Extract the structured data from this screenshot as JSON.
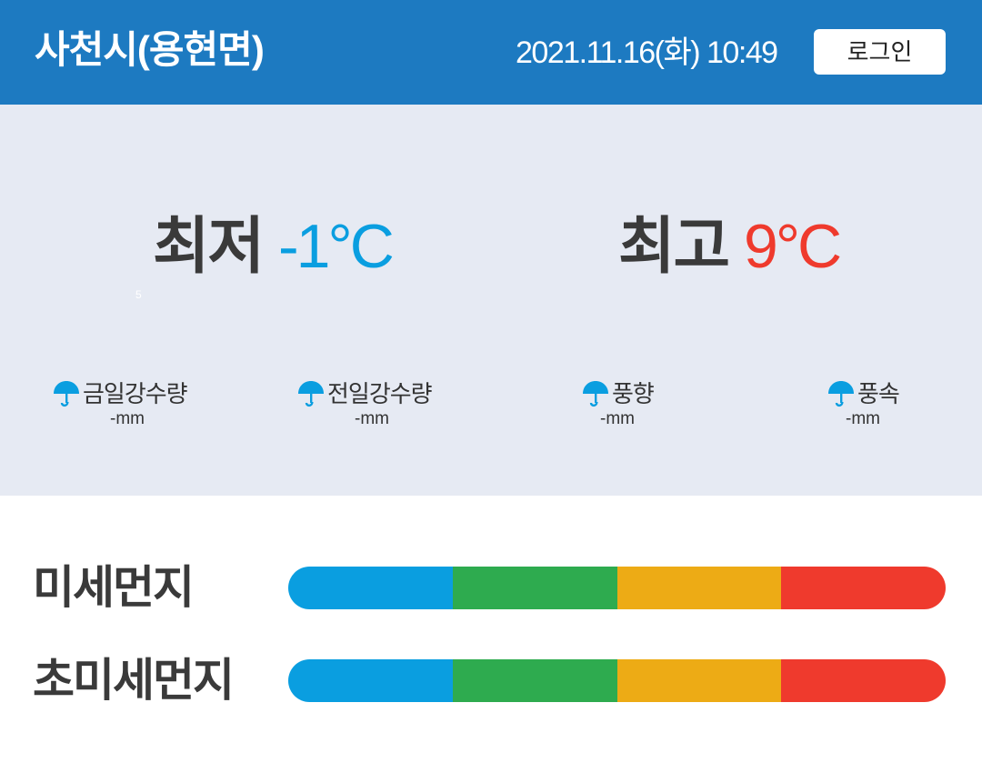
{
  "header": {
    "location": "사천시(용현면)",
    "datetime": "2021.11.16(화) 10:49",
    "login_label": "로그인"
  },
  "weather": {
    "min": {
      "label": "최저",
      "value": "-1°C"
    },
    "max": {
      "label": "최고",
      "value": "9°C"
    },
    "tiny_mark": "5",
    "stats": [
      {
        "label": "금일강수량",
        "value": "-mm",
        "icon": "umbrella-icon"
      },
      {
        "label": "전일강수량",
        "value": "-mm",
        "icon": "umbrella-icon"
      },
      {
        "label": "풍향",
        "value": "-mm",
        "icon": "umbrella-icon"
      },
      {
        "label": "풍속",
        "value": "-mm",
        "icon": "umbrella-icon"
      }
    ]
  },
  "dust": {
    "pm10": {
      "label": "미세먼지"
    },
    "pm25": {
      "label": "초미세먼지"
    }
  },
  "colors": {
    "header_bg": "#1d7ac1",
    "weather_bg": "#e6eaf3",
    "min_temp": "#0a9ee0",
    "max_temp": "#ef3a2d",
    "icon": "#0a9ee0",
    "grade_good": "#0a9ee0",
    "grade_normal": "#2eab4f",
    "grade_bad": "#edab15",
    "grade_very_bad": "#ef3a2d"
  }
}
